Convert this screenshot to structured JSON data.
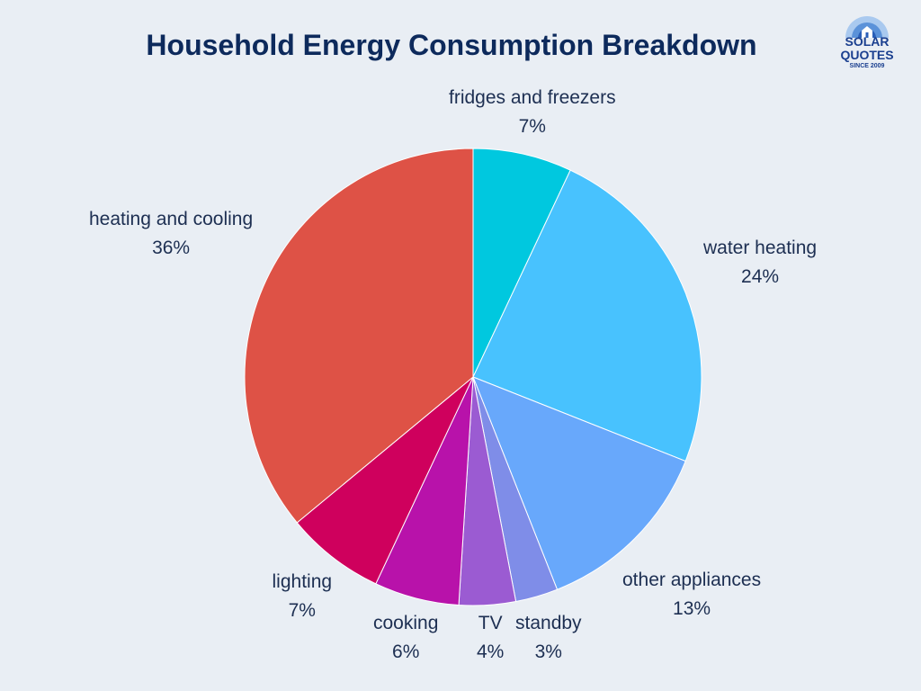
{
  "chart_data": {
    "type": "pie",
    "title": "Household Energy Consumption Breakdown",
    "slices": [
      {
        "label": "fridges and freezers",
        "value": 7,
        "value_label": "7%",
        "color": "#00c8df"
      },
      {
        "label": "water heating",
        "value": 24,
        "value_label": "24%",
        "color": "#48c2fe"
      },
      {
        "label": "other appliances",
        "value": 13,
        "value_label": "13%",
        "color": "#68a8fb"
      },
      {
        "label": "standby",
        "value": 3,
        "value_label": "3%",
        "color": "#7f8de8"
      },
      {
        "label": "TV",
        "value": 4,
        "value_label": "4%",
        "color": "#9b5bd2"
      },
      {
        "label": "cooking",
        "value": 6,
        "value_label": "6%",
        "color": "#b812aa"
      },
      {
        "label": "lighting",
        "value": 7,
        "value_label": "7%",
        "color": "#cf005d"
      },
      {
        "label": "heating and cooling",
        "value": 36,
        "value_label": "36%",
        "color": "#de5246"
      }
    ],
    "start_angle": "12 o'clock",
    "direction": "clockwise",
    "legend": "none"
  },
  "logo": {
    "line1": "SOLAR",
    "line2": "QUOTES",
    "line3": "SINCE 2009",
    "color": "#1a3f8f"
  }
}
